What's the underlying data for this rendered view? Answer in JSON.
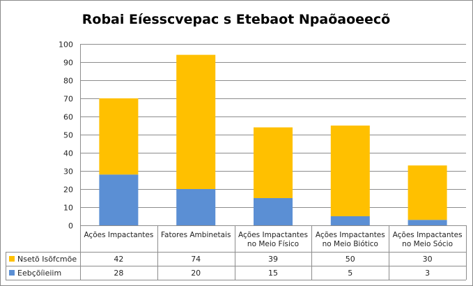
{
  "chart_data": {
    "type": "bar",
    "stacked": true,
    "title": "Robai Eíesscvepac s Etebaot Npaõaoeecõ",
    "categories": [
      [
        "Ações Impactantes"
      ],
      [
        "Fatores Ambinetais"
      ],
      [
        "Ações Impactantes",
        "no Meio Físico"
      ],
      [
        "Ações Impactantes",
        "no Meio Biótico"
      ],
      [
        "Ações Impactantes",
        "no Meio Sócio"
      ]
    ],
    "series": [
      {
        "name": "Eebçõíieiim",
        "values": [
          28,
          20,
          15,
          5,
          3
        ],
        "color": "#5b8fd4"
      },
      {
        "name": "Nsetõ Isõfcmõe",
        "values": [
          42,
          74,
          39,
          50,
          30
        ],
        "color": "#ffc000"
      }
    ],
    "table_row_order": [
      1,
      0
    ],
    "ylim": [
      0,
      100
    ],
    "yticks": [
      0,
      10,
      20,
      30,
      40,
      50,
      60,
      70,
      80,
      90,
      100
    ],
    "grid": true,
    "legend": "data-table"
  }
}
